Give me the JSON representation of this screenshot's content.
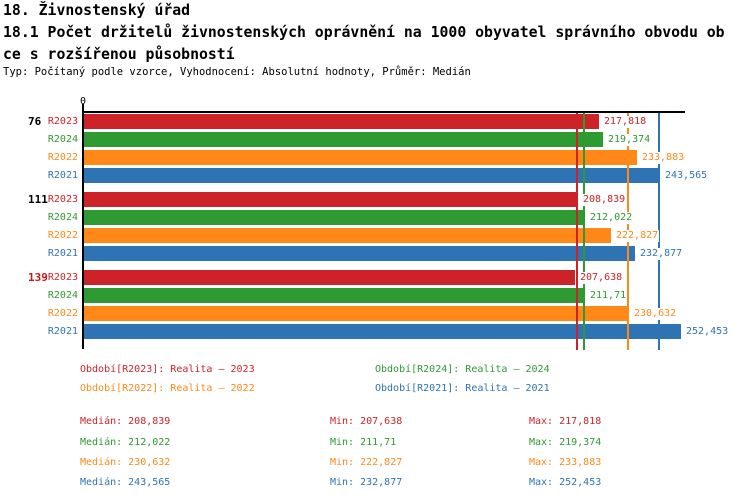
{
  "header": {
    "line1": "18. Živnostenský úřad",
    "line2": "18.1 Počet držitelů živnostenských oprávnění na 1000 obyvatel správního obvodu ob",
    "line3": "ce s rozšířenou působností",
    "meta": "Typ: Počítaný podle vzorce, Vyhodnocení: Absolutní hodnoty, Průměr: Medián"
  },
  "colors": {
    "r2023": "#cd2328",
    "r2024": "#2f9932",
    "r2022": "#ff8818",
    "r2021": "#2e74b5",
    "axis": "#000000",
    "highlight": "#cc1318",
    "group_label": "#000000",
    "background": "#ffffff"
  },
  "chart_data": {
    "type": "bar",
    "orientation": "horizontal",
    "x_origin_label": "0",
    "x_min": 0,
    "x_implied_max": 260,
    "grid": "off",
    "series": [
      "R2023",
      "R2024",
      "R2022",
      "R2021"
    ],
    "groups": [
      {
        "label": "76",
        "highlighted": false,
        "bars": [
          {
            "series": "R2023",
            "value": 217.818,
            "label": "217,818"
          },
          {
            "series": "R2024",
            "value": 219.374,
            "label": "219,374"
          },
          {
            "series": "R2022",
            "value": 233.883,
            "label": "233,883"
          },
          {
            "series": "R2021",
            "value": 243.565,
            "label": "243,565"
          }
        ]
      },
      {
        "label": "111",
        "highlighted": false,
        "bars": [
          {
            "series": "R2023",
            "value": 208.839,
            "label": "208,839"
          },
          {
            "series": "R2024",
            "value": 212.022,
            "label": "212,022"
          },
          {
            "series": "R2022",
            "value": 222.827,
            "label": "222,827"
          },
          {
            "series": "R2021",
            "value": 232.877,
            "label": "232,877"
          }
        ]
      },
      {
        "label": "139",
        "highlighted": true,
        "bars": [
          {
            "series": "R2023",
            "value": 207.638,
            "label": "207,638"
          },
          {
            "series": "R2024",
            "value": 211.71,
            "label": "211,71"
          },
          {
            "series": "R2022",
            "value": 230.632,
            "label": "230,632"
          },
          {
            "series": "R2021",
            "value": 252.453,
            "label": "252,453"
          }
        ]
      }
    ],
    "median_lines": [
      {
        "series": "R2023",
        "value": 208.839
      },
      {
        "series": "R2024",
        "value": 212.022
      },
      {
        "series": "R2022",
        "value": 230.632
      },
      {
        "series": "R2021",
        "value": 243.565
      }
    ]
  },
  "legend": [
    {
      "series": "R2023",
      "text": "Období[R2023]: Realita – 2023"
    },
    {
      "series": "R2024",
      "text": "Období[R2024]: Realita – 2024"
    },
    {
      "series": "R2022",
      "text": "Období[R2022]: Realita – 2022"
    },
    {
      "series": "R2021",
      "text": "Období[R2021]: Realita – 2021"
    }
  ],
  "stats": [
    {
      "series": "R2023",
      "median": "Medián: 208,839",
      "min": "Min: 207,638",
      "max": "Max: 217,818"
    },
    {
      "series": "R2024",
      "median": "Medián: 212,022",
      "min": "Min: 211,71",
      "max": "Max: 219,374"
    },
    {
      "series": "R2022",
      "median": "Medián: 230,632",
      "min": "Min: 222,827",
      "max": "Max: 233,883"
    },
    {
      "series": "R2021",
      "median": "Medián: 243,565",
      "min": "Min: 232,877",
      "max": "Max: 252,453"
    }
  ]
}
